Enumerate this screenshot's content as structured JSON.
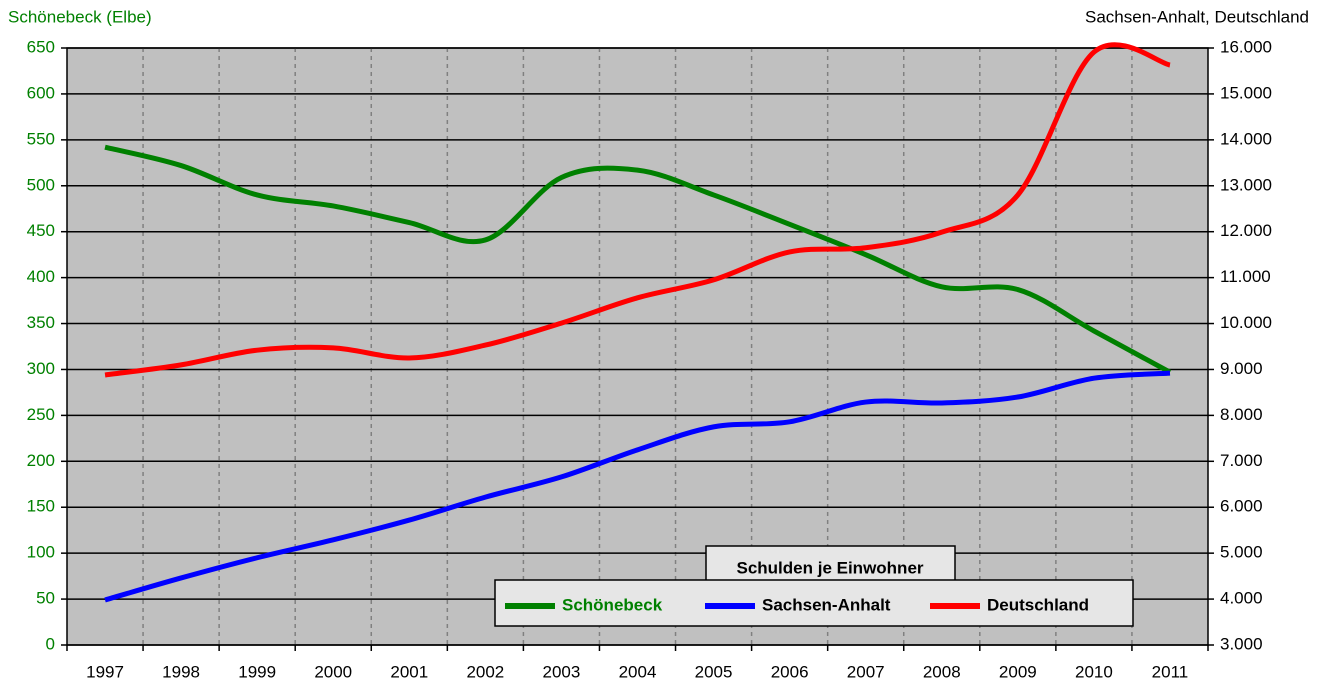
{
  "chart_data": {
    "type": "line",
    "y_label": "Schönebeck (Elbe)",
    "y2_label": "Sachsen-Anhalt, Deutschland",
    "legend_title": "Schulden je Einwohner",
    "categories": [
      "1997",
      "1998",
      "1999",
      "2000",
      "2001",
      "2002",
      "2003",
      "2004",
      "2005",
      "2006",
      "2007",
      "2008",
      "2009",
      "2010",
      "2011"
    ],
    "series": [
      {
        "name": "Schönebeck",
        "color": "#008000",
        "values": [
          542,
          522,
          490,
          478,
          460,
          441,
          509,
          517,
          490,
          458,
          425,
          390,
          387,
          342,
          297
        ]
      },
      {
        "name": "Sachsen-Anhalt",
        "color": "#0000ff",
        "axis": "y2",
        "values": [
          3980,
          4460,
          4900,
          5290,
          5720,
          6220,
          6660,
          7250,
          7750,
          7860,
          8290,
          8270,
          8400,
          8810,
          8920
        ]
      },
      {
        "name": "Deutschland",
        "color": "#ff0000",
        "axis": "y2",
        "values": [
          8880,
          9100,
          9420,
          9470,
          9250,
          9530,
          10010,
          10560,
          10950,
          11560,
          11650,
          11990,
          12800,
          15910,
          15630
        ]
      }
    ],
    "ylim": [
      0,
      650
    ],
    "yticks": [
      0,
      50,
      100,
      150,
      200,
      250,
      300,
      350,
      400,
      450,
      500,
      550,
      600,
      650
    ],
    "y2lim": [
      3000,
      16000
    ],
    "y2ticks": [
      {
        "value": 3000,
        "label": "3.000"
      },
      {
        "value": 4000,
        "label": "4.000"
      },
      {
        "value": 5000,
        "label": "5.000"
      },
      {
        "value": 6000,
        "label": "6.000"
      },
      {
        "value": 7000,
        "label": "7.000"
      },
      {
        "value": 8000,
        "label": "8.000"
      },
      {
        "value": 9000,
        "label": "9.000"
      },
      {
        "value": 10000,
        "label": "10.000"
      },
      {
        "value": 11000,
        "label": "11.000"
      },
      {
        "value": 12000,
        "label": "12.000"
      },
      {
        "value": 13000,
        "label": "13.000"
      },
      {
        "value": 14000,
        "label": "14.000"
      },
      {
        "value": 15000,
        "label": "15.000"
      },
      {
        "value": 16000,
        "label": "16.000"
      }
    ],
    "grid": true
  }
}
